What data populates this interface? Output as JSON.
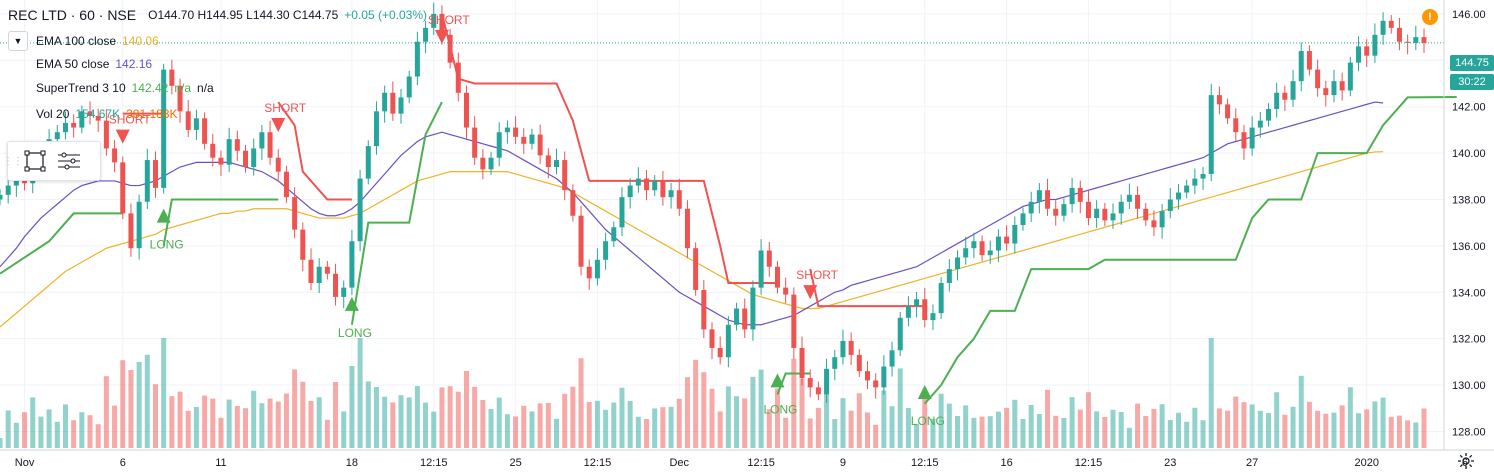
{
  "header": {
    "symbol": "REC LTD · 60 · NSE",
    "ohlc": "O144.70 H144.95 L144.30 C144.75",
    "change": "+0.05 (+0.03%)"
  },
  "indicators": [
    {
      "label": "EMA 100 close",
      "value": "140.06",
      "color": "#f0b226"
    },
    {
      "label": "EMA 50 close",
      "value": "142.16",
      "color": "#6c4fc4"
    },
    {
      "label": "SuperTrend 3 10",
      "value": "142.42",
      "extra": "n/a",
      "extra2": "n/a",
      "color": "#4caf50"
    },
    {
      "label": "Vol 20",
      "value": "154.67K",
      "extra": "381.188K",
      "color": "#26a69a",
      "extra_color": "#ef6c00"
    }
  ],
  "price_axis": {
    "ticks": [
      "146.00",
      "144.00",
      "142.00",
      "140.00",
      "138.00",
      "136.00",
      "134.00",
      "132.00",
      "130.00",
      "128.00"
    ],
    "last_price": "144.75",
    "countdown": "30:22"
  },
  "time_axis": [
    "Nov",
    "6",
    "11",
    "18",
    "12:15",
    "25",
    "12:15",
    "Dec",
    "12:15",
    "9",
    "12:15",
    "16",
    "12:15",
    "23",
    "27",
    "2020",
    "6"
  ],
  "colors": {
    "up": "#26a69a",
    "down": "#ef5350",
    "ema100": "#f0b226",
    "ema50": "#6c4fc4",
    "st_up": "#4caf50",
    "st_down": "#f05350"
  },
  "chart_data": {
    "type": "candlestick",
    "title": "REC LTD · 60 · NSE",
    "ylim": [
      127.2,
      146.6
    ],
    "x_range": [
      0,
      178
    ],
    "time_ticks": [
      {
        "i": 3,
        "label": "Nov"
      },
      {
        "i": 15,
        "label": "6"
      },
      {
        "i": 27,
        "label": "11"
      },
      {
        "i": 43,
        "label": "18"
      },
      {
        "i": 53,
        "label": "12:15"
      },
      {
        "i": 63,
        "label": "25"
      },
      {
        "i": 73,
        "label": "12:15"
      },
      {
        "i": 83,
        "label": "Dec"
      },
      {
        "i": 93,
        "label": "12:15"
      },
      {
        "i": 103,
        "label": "9"
      },
      {
        "i": 113,
        "label": "12:15"
      },
      {
        "i": 123,
        "label": "16"
      },
      {
        "i": 133,
        "label": "12:15"
      },
      {
        "i": 143,
        "label": "23"
      },
      {
        "i": 153,
        "label": "27"
      },
      {
        "i": 167,
        "label": "2020"
      },
      {
        "i": 179,
        "label": "6"
      }
    ],
    "close": [
      138.2,
      138.6,
      138.9,
      138.7,
      139.6,
      140.2,
      140.6,
      140.9,
      141.3,
      141.1,
      141.8,
      141.6,
      141.4,
      140.2,
      139.6,
      137.4,
      135.9,
      137.9,
      139.7,
      138.5,
      143.6,
      142.9,
      141.8,
      141.0,
      141.5,
      140.4,
      139.8,
      139.5,
      140.6,
      140.1,
      139.4,
      140.2,
      140.9,
      139.8,
      139.2,
      138.1,
      136.7,
      135.4,
      134.4,
      135.1,
      134.8,
      133.8,
      134.2,
      136.2,
      138.9,
      140.3,
      141.8,
      142.6,
      141.7,
      142.4,
      143.3,
      144.8,
      145.4,
      146.0,
      145.1,
      143.9,
      142.6,
      141.1,
      139.8,
      139.3,
      139.8,
      140.9,
      141.1,
      140.7,
      140.4,
      140.8,
      139.9,
      139.4,
      139.7,
      138.4,
      137.3,
      135.1,
      134.6,
      135.4,
      136.2,
      136.8,
      138.1,
      138.6,
      138.9,
      138.4,
      138.8,
      138.1,
      138.4,
      137.6,
      135.9,
      134.1,
      132.4,
      131.6,
      131.2,
      132.6,
      133.3,
      132.4,
      134.2,
      135.8,
      135.1,
      134.2,
      133.9,
      131.6,
      130.3,
      129.9,
      129.6,
      130.7,
      131.2,
      131.9,
      131.3,
      130.6,
      130.2,
      129.9,
      130.8,
      131.5,
      132.9,
      133.4,
      133.7,
      132.8,
      133.1,
      134.4,
      135.0,
      135.5,
      135.9,
      136.2,
      135.6,
      135.8,
      136.4,
      136.1,
      136.9,
      137.4,
      137.9,
      138.4,
      137.6,
      137.3,
      137.8,
      138.5,
      137.9,
      137.2,
      137.6,
      137.1,
      137.4,
      137.9,
      138.2,
      137.6,
      137.1,
      136.8,
      137.5,
      138.0,
      138.3,
      138.6,
      138.9,
      139.1,
      142.5,
      142.1,
      141.5,
      140.9,
      140.2,
      141.1,
      141.4,
      141.9,
      142.6,
      142.3,
      143.1,
      144.4,
      143.6,
      142.8,
      142.5,
      143.1,
      142.7,
      143.9,
      144.6,
      144.2,
      145.1,
      145.7,
      145.4,
      144.8,
      144.75,
      145.0,
      144.75
    ],
    "ema50": [
      135.1,
      135.5,
      135.9,
      136.4,
      136.8,
      137.2,
      137.5,
      137.8,
      138.1,
      138.4,
      138.6,
      138.7,
      138.8,
      138.8,
      138.8,
      138.7,
      138.6,
      138.6,
      138.7,
      138.8,
      139.0,
      139.2,
      139.4,
      139.5,
      139.6,
      139.6,
      139.6,
      139.6,
      139.6,
      139.5,
      139.4,
      139.3,
      139.2,
      139.0,
      138.8,
      138.5,
      138.2,
      137.9,
      137.6,
      137.4,
      137.3,
      137.3,
      137.4,
      137.6,
      137.9,
      138.3,
      138.7,
      139.1,
      139.5,
      139.9,
      140.2,
      140.5,
      140.7,
      140.8,
      140.9,
      140.8,
      140.7,
      140.6,
      140.5,
      140.4,
      140.3,
      140.2,
      140.1,
      139.9,
      139.7,
      139.5,
      139.3,
      139.1,
      138.9,
      138.6,
      138.3,
      137.9,
      137.5,
      137.1,
      136.7,
      136.4,
      136.1,
      135.8,
      135.5,
      135.2,
      134.9,
      134.6,
      134.3,
      134.0,
      133.8,
      133.6,
      133.4,
      133.2,
      133.0,
      132.8,
      132.7,
      132.6,
      132.6,
      132.6,
      132.7,
      132.8,
      132.9,
      133.0,
      133.2,
      133.4,
      133.6,
      133.8,
      134.0,
      134.1,
      134.3,
      134.4,
      134.5,
      134.6,
      134.7,
      134.8,
      134.9,
      135.0,
      135.1,
      135.3,
      135.5,
      135.7,
      135.9,
      136.1,
      136.3,
      136.5,
      136.7,
      136.9,
      137.1,
      137.3,
      137.5,
      137.7,
      137.8,
      137.9,
      138.0,
      138.0,
      138.1,
      138.2,
      138.3,
      138.4,
      138.5,
      138.6,
      138.7,
      138.8,
      138.9,
      139.0,
      139.1,
      139.2,
      139.3,
      139.4,
      139.5,
      139.6,
      139.7,
      139.8,
      140.0,
      140.2,
      140.4,
      140.5,
      140.6,
      140.7,
      140.8,
      140.9,
      141.0,
      141.1,
      141.2,
      141.3,
      141.4,
      141.5,
      141.6,
      141.7,
      141.8,
      141.9,
      142.0,
      142.1,
      142.2,
      142.16
    ],
    "ema100": [
      132.5,
      132.8,
      133.1,
      133.4,
      133.7,
      134.0,
      134.3,
      134.6,
      134.9,
      135.1,
      135.3,
      135.5,
      135.7,
      135.9,
      136.0,
      136.1,
      136.2,
      136.3,
      136.4,
      136.5,
      136.7,
      136.8,
      136.9,
      137.0,
      137.1,
      137.2,
      137.3,
      137.4,
      137.4,
      137.5,
      137.5,
      137.6,
      137.6,
      137.6,
      137.6,
      137.6,
      137.5,
      137.4,
      137.3,
      137.2,
      137.2,
      137.2,
      137.2,
      137.3,
      137.4,
      137.6,
      137.8,
      138.0,
      138.2,
      138.4,
      138.6,
      138.8,
      138.9,
      139.0,
      139.1,
      139.2,
      139.2,
      139.2,
      139.2,
      139.2,
      139.2,
      139.2,
      139.2,
      139.1,
      139.0,
      138.9,
      138.8,
      138.7,
      138.6,
      138.5,
      138.3,
      138.1,
      137.9,
      137.7,
      137.5,
      137.3,
      137.1,
      136.9,
      136.7,
      136.5,
      136.3,
      136.1,
      135.9,
      135.7,
      135.5,
      135.3,
      135.1,
      134.9,
      134.7,
      134.5,
      134.3,
      134.1,
      133.9,
      133.8,
      133.7,
      133.6,
      133.5,
      133.4,
      133.3,
      133.3,
      133.3,
      133.4,
      133.5,
      133.6,
      133.7,
      133.8,
      133.9,
      134.0,
      134.1,
      134.2,
      134.3,
      134.4,
      134.5,
      134.6,
      134.7,
      134.8,
      134.9,
      135.0,
      135.1,
      135.2,
      135.3,
      135.4,
      135.5,
      135.6,
      135.7,
      135.8,
      135.9,
      136.0,
      136.1,
      136.2,
      136.3,
      136.4,
      136.5,
      136.6,
      136.7,
      136.8,
      136.9,
      137.0,
      137.1,
      137.2,
      137.3,
      137.4,
      137.5,
      137.6,
      137.7,
      137.8,
      137.9,
      138.0,
      138.1,
      138.2,
      138.3,
      138.4,
      138.5,
      138.6,
      138.7,
      138.8,
      138.9,
      139.0,
      139.1,
      139.2,
      139.3,
      139.4,
      139.5,
      139.6,
      139.7,
      139.8,
      139.9,
      140.0,
      140.05,
      140.06
    ],
    "supertrend": [
      {
        "dir": "up",
        "from": 0,
        "to": 15,
        "points": [
          [
            0,
            134.8
          ],
          [
            3,
            135.5
          ],
          [
            6,
            136.2
          ],
          [
            9,
            137.4
          ],
          [
            13,
            137.4
          ],
          [
            15,
            137.4
          ]
        ]
      },
      {
        "dir": "down",
        "from": 15,
        "to": 20,
        "points": [
          [
            15,
            141.7
          ],
          [
            20,
            141.7
          ]
        ]
      },
      {
        "dir": "up",
        "from": 20,
        "to": 34,
        "points": [
          [
            20,
            136.0
          ],
          [
            21,
            138.0
          ],
          [
            34,
            138.0
          ]
        ]
      },
      {
        "dir": "down",
        "from": 34,
        "to": 43,
        "points": [
          [
            34,
            142.2
          ],
          [
            36,
            141.2
          ],
          [
            37,
            139.2
          ],
          [
            40,
            138.0
          ],
          [
            43,
            138.0
          ]
        ]
      },
      {
        "dir": "up",
        "from": 43,
        "to": 54,
        "points": [
          [
            43,
            132.6
          ],
          [
            45,
            137.0
          ],
          [
            50,
            137.0
          ],
          [
            52,
            140.8
          ],
          [
            54,
            142.2
          ]
        ]
      },
      {
        "dir": "down",
        "from": 54,
        "to": 70,
        "points": [
          [
            54,
            146.0
          ],
          [
            56,
            143.2
          ],
          [
            58,
            143.0
          ],
          [
            68,
            143.0
          ],
          [
            70,
            141.4
          ],
          [
            72,
            138.8
          ]
        ]
      },
      {
        "dir": "down",
        "from": 72,
        "to": 95,
        "points": [
          [
            72,
            138.8
          ],
          [
            86,
            138.8
          ],
          [
            88,
            136.0
          ],
          [
            89,
            134.4
          ],
          [
            95,
            134.4
          ]
        ]
      },
      {
        "dir": "up",
        "from": 95,
        "to": 99,
        "points": [
          [
            95,
            129.6
          ],
          [
            96,
            130.5
          ],
          [
            99,
            130.5
          ]
        ]
      },
      {
        "dir": "down",
        "from": 99,
        "to": 113,
        "points": [
          [
            99,
            135.0
          ],
          [
            100,
            133.4
          ],
          [
            113,
            133.4
          ]
        ]
      },
      {
        "dir": "up",
        "from": 113,
        "to": 178,
        "points": [
          [
            113,
            129.2
          ],
          [
            115,
            130.0
          ],
          [
            117,
            131.2
          ],
          [
            119,
            132.0
          ],
          [
            121,
            133.2
          ],
          [
            124,
            133.2
          ],
          [
            126,
            135.0
          ],
          [
            133,
            135.0
          ],
          [
            135,
            135.4
          ],
          [
            151,
            135.4
          ],
          [
            153,
            137.2
          ],
          [
            155,
            138.0
          ],
          [
            159,
            138.0
          ],
          [
            161,
            140.0
          ],
          [
            167,
            140.0
          ],
          [
            169,
            141.2
          ],
          [
            172,
            142.4
          ],
          [
            178,
            142.42
          ]
        ]
      }
    ],
    "signals": [
      {
        "i": 15,
        "type": "SHORT",
        "price": 141.7
      },
      {
        "i": 20,
        "type": "LONG",
        "price": 137.0
      },
      {
        "i": 34,
        "type": "SHORT",
        "price": 142.2
      },
      {
        "i": 43,
        "type": "LONG",
        "price": 133.2
      },
      {
        "i": 54,
        "type": "SHORT",
        "price": 146.0
      },
      {
        "i": 95,
        "type": "LONG",
        "price": 129.9
      },
      {
        "i": 99,
        "type": "SHORT",
        "price": 135.0
      },
      {
        "i": 113,
        "type": "LONG",
        "price": 129.4
      }
    ],
    "volume_max": 381.188
  }
}
